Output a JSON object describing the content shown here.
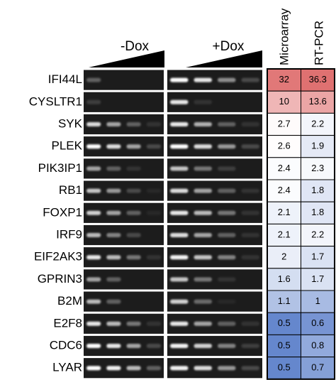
{
  "conditions": [
    "-Dox",
    "+Dox"
  ],
  "columns": [
    "Microarray",
    "RT-PCR"
  ],
  "rows": [
    {
      "gene": "IFI44L",
      "values": [
        32,
        36.3
      ]
    },
    {
      "gene": "CYSLTR1",
      "values": [
        10,
        13.6
      ]
    },
    {
      "gene": "SYK",
      "values": [
        2.7,
        2.2
      ]
    },
    {
      "gene": "PLEK",
      "values": [
        2.6,
        1.9
      ]
    },
    {
      "gene": "PIK3IP1",
      "values": [
        2.4,
        2.3
      ]
    },
    {
      "gene": "RB1",
      "values": [
        2.4,
        1.8
      ]
    },
    {
      "gene": "FOXP1",
      "values": [
        2.1,
        1.8
      ]
    },
    {
      "gene": "IRF9",
      "values": [
        2.1,
        2.2
      ]
    },
    {
      "gene": "EIF2AK3",
      "values": [
        2,
        1.7
      ]
    },
    {
      "gene": "GPRIN3",
      "values": [
        1.6,
        1.7
      ]
    },
    {
      "gene": "B2M",
      "values": [
        1.1,
        1
      ]
    },
    {
      "gene": "E2F8",
      "values": [
        0.5,
        0.6
      ]
    },
    {
      "gene": "CDC6",
      "values": [
        0.5,
        0.8
      ]
    },
    {
      "gene": "LYAR",
      "values": [
        0.5,
        0.7
      ]
    }
  ]
}
